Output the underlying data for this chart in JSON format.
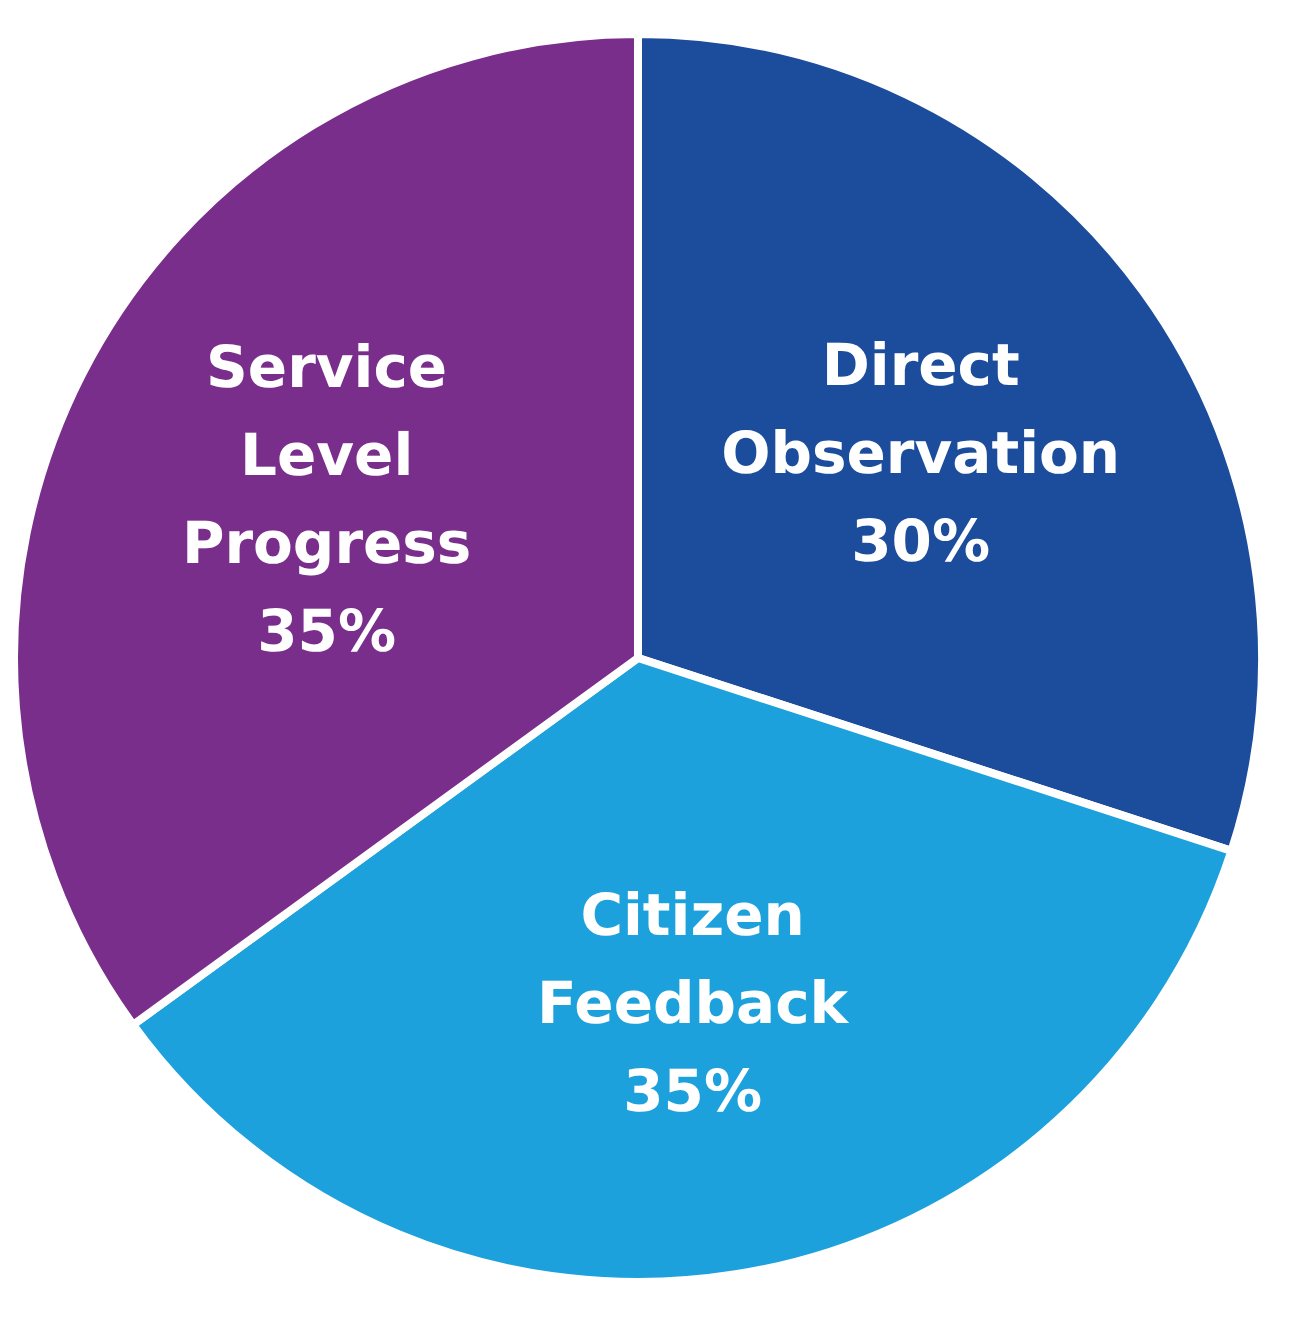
{
  "chart_data": {
    "type": "pie",
    "categories": [
      "Direct Observation",
      "Citizen Feedback",
      "Service Level Progress"
    ],
    "values": [
      30,
      35,
      35
    ],
    "colors": [
      "#1c4c9c",
      "#1da1dc",
      "#7a2e8c"
    ],
    "value_labels": [
      "30%",
      "35%",
      "35%"
    ]
  }
}
